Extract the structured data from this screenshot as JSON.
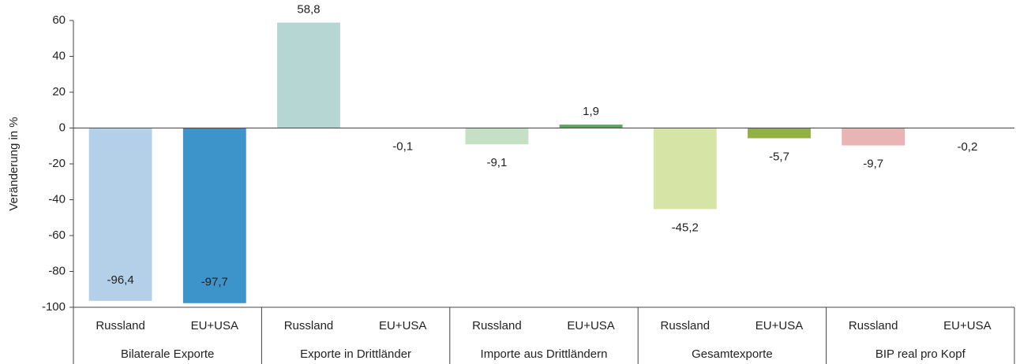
{
  "chart_data": {
    "type": "bar",
    "y_label": "Veränderung in %",
    "groups": [
      "Bilaterale Exporte",
      "Exporte in Drittländer",
      "Importe aus Drittländern",
      "Gesamtexporte",
      "BIP real pro Kopf"
    ],
    "categories": [
      "Russland",
      "EU+USA",
      "Russland",
      "EU+USA",
      "Russland",
      "EU+USA",
      "Russland",
      "EU+USA",
      "Russland",
      "EU+USA"
    ],
    "values": [
      -96.4,
      -97.7,
      58.8,
      -0.1,
      -9.1,
      1.9,
      -45.2,
      -5.7,
      -9.7,
      -0.2
    ],
    "value_labels": [
      "-96,4",
      "-97,7",
      "58,8",
      "-0,1",
      "-9,1",
      "1,9",
      "-45,2",
      "-5,7",
      "-9,7",
      "-0,2"
    ],
    "colors": [
      "#b4d0e8",
      "#3d94cb",
      "#b6d6d4",
      "#4a9a8e",
      "#c6e0c6",
      "#5ba462",
      "#d6e4a5",
      "#93b043",
      "#e8b4b4",
      "#c0504d"
    ],
    "ylim": [
      -100,
      60
    ],
    "yticks": [
      -100,
      -80,
      -60,
      -40,
      -20,
      0,
      20,
      40,
      60
    ]
  }
}
